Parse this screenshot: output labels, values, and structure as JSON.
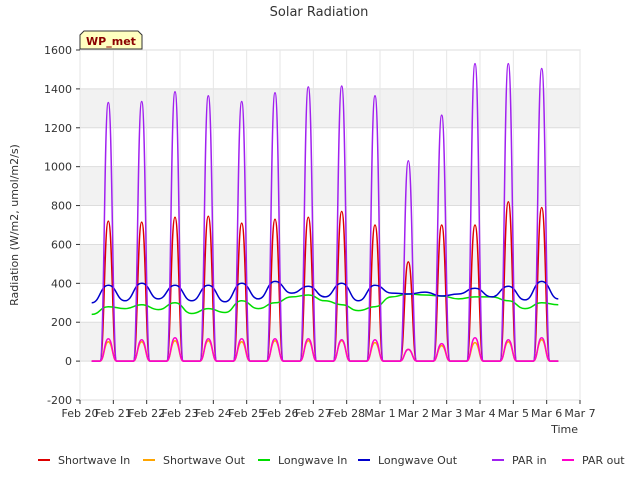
{
  "chart_data": {
    "type": "line",
    "title": "Solar Radiation",
    "xlabel": "Time",
    "ylabel": "Radiation (W/m2, umol/m2/s)",
    "badge": "WP_met",
    "x_ticks": [
      "Feb 20",
      "Feb 21",
      "Feb 22",
      "Feb 23",
      "Feb 24",
      "Feb 25",
      "Feb 26",
      "Feb 27",
      "Feb 28",
      "Mar 1",
      "Mar 2",
      "Mar 3",
      "Mar 4",
      "Mar 5",
      "Mar 6",
      "Mar 7"
    ],
    "y_ticks": [
      -200,
      0,
      200,
      400,
      600,
      800,
      1000,
      1200,
      1400,
      1600
    ],
    "xlim": [
      0,
      15
    ],
    "ylim": [
      -200,
      1600
    ],
    "grid": true,
    "legend_position": "bottom",
    "day_centers": [
      0.85,
      1.85,
      2.85,
      3.85,
      4.85,
      5.85,
      6.85,
      7.85,
      8.85,
      9.85,
      10.85,
      11.85,
      12.85,
      13.85
    ],
    "series": [
      {
        "name": "Shortwave In",
        "color": "#dd0000",
        "x": [
          0.35,
          0.6,
          0.85,
          1.1,
          1.35,
          1.6,
          1.85,
          2.1,
          2.35,
          2.6,
          2.85,
          3.1,
          3.35,
          3.6,
          3.85,
          4.1,
          4.35,
          4.6,
          4.85,
          5.1,
          5.35,
          5.6,
          5.85,
          6.1,
          6.35,
          6.6,
          6.85,
          7.1,
          7.35,
          7.6,
          7.85,
          8.1,
          8.35,
          8.6,
          8.85,
          9.1,
          9.35,
          9.6,
          9.85,
          10.1,
          10.35,
          10.6,
          10.85,
          11.1,
          11.35,
          11.6,
          11.85,
          12.1,
          12.35,
          12.6,
          12.85,
          13.1,
          13.35,
          13.6,
          13.85,
          14.1,
          14.35
        ],
        "y": [
          0,
          0,
          720,
          0,
          0,
          0,
          715,
          0,
          0,
          0,
          740,
          0,
          0,
          0,
          745,
          0,
          0,
          0,
          710,
          0,
          0,
          0,
          730,
          0,
          0,
          0,
          740,
          0,
          0,
          0,
          770,
          0,
          0,
          0,
          700,
          0,
          0,
          0,
          510,
          0,
          0,
          0,
          700,
          0,
          0,
          0,
          700,
          0,
          0,
          0,
          820,
          0,
          0,
          0,
          790,
          0,
          0
        ]
      },
      {
        "name": "Shortwave Out",
        "color": "#ffa500",
        "x": [
          0.35,
          0.6,
          0.85,
          1.1,
          1.35,
          1.6,
          1.85,
          2.1,
          2.35,
          2.6,
          2.85,
          3.1,
          3.35,
          3.6,
          3.85,
          4.1,
          4.35,
          4.6,
          4.85,
          5.1,
          5.35,
          5.6,
          5.85,
          6.1,
          6.35,
          6.6,
          6.85,
          7.1,
          7.35,
          7.6,
          7.85,
          8.1,
          8.35,
          8.6,
          8.85,
          9.1,
          9.35,
          9.6,
          9.85,
          10.1,
          10.35,
          10.6,
          10.85,
          11.1,
          11.35,
          11.6,
          11.85,
          12.1,
          12.35,
          12.6,
          12.85,
          13.1,
          13.35,
          13.6,
          13.85,
          14.1,
          14.35
        ],
        "y": [
          0,
          0,
          100,
          0,
          0,
          0,
          100,
          0,
          0,
          0,
          105,
          0,
          0,
          0,
          105,
          0,
          0,
          0,
          100,
          0,
          0,
          0,
          105,
          0,
          0,
          0,
          105,
          0,
          0,
          0,
          105,
          0,
          0,
          0,
          95,
          0,
          0,
          0,
          60,
          0,
          0,
          0,
          80,
          0,
          0,
          0,
          95,
          0,
          0,
          0,
          100,
          0,
          0,
          0,
          110,
          0,
          0
        ]
      },
      {
        "name": "Longwave In",
        "color": "#00dd00",
        "x": [
          0.35,
          0.85,
          1.35,
          1.85,
          2.35,
          2.85,
          3.35,
          3.85,
          4.35,
          4.85,
          5.35,
          5.85,
          6.35,
          6.85,
          7.35,
          7.85,
          8.35,
          8.85,
          9.35,
          9.85,
          10.35,
          10.85,
          11.35,
          11.85,
          12.35,
          12.85,
          13.35,
          13.85,
          14.35
        ],
        "y": [
          240,
          280,
          270,
          290,
          265,
          300,
          245,
          270,
          250,
          310,
          270,
          300,
          330,
          340,
          310,
          290,
          260,
          280,
          330,
          345,
          340,
          335,
          320,
          330,
          330,
          310,
          270,
          300,
          290
        ]
      },
      {
        "name": "Longwave Out",
        "color": "#0000cc",
        "x": [
          0.35,
          0.85,
          1.35,
          1.85,
          2.35,
          2.85,
          3.35,
          3.85,
          4.35,
          4.85,
          5.35,
          5.85,
          6.35,
          6.85,
          7.35,
          7.85,
          8.35,
          8.85,
          9.35,
          9.85,
          10.35,
          10.85,
          11.35,
          11.85,
          12.35,
          12.85,
          13.35,
          13.85,
          14.35
        ],
        "y": [
          300,
          390,
          310,
          400,
          320,
          390,
          310,
          390,
          305,
          400,
          320,
          410,
          350,
          385,
          330,
          400,
          310,
          390,
          350,
          345,
          355,
          335,
          345,
          375,
          330,
          385,
          315,
          410,
          320
        ]
      },
      {
        "name": "PAR in",
        "color": "#a020f0",
        "x": [
          0.35,
          0.6,
          0.85,
          1.1,
          1.35,
          1.6,
          1.85,
          2.1,
          2.35,
          2.6,
          2.85,
          3.1,
          3.35,
          3.6,
          3.85,
          4.1,
          4.35,
          4.6,
          4.85,
          5.1,
          5.35,
          5.6,
          5.85,
          6.1,
          6.35,
          6.6,
          6.85,
          7.1,
          7.35,
          7.6,
          7.85,
          8.1,
          8.35,
          8.6,
          8.85,
          9.1,
          9.35,
          9.6,
          9.85,
          10.1,
          10.35,
          10.6,
          10.85,
          11.1,
          11.35,
          11.6,
          11.85,
          12.1,
          12.35,
          12.6,
          12.85,
          13.1,
          13.35,
          13.6,
          13.85,
          14.1,
          14.35
        ],
        "y": [
          0,
          0,
          1330,
          0,
          0,
          0,
          1335,
          0,
          0,
          0,
          1385,
          0,
          0,
          0,
          1365,
          0,
          0,
          0,
          1335,
          0,
          0,
          0,
          1380,
          0,
          0,
          0,
          1410,
          0,
          0,
          0,
          1415,
          0,
          0,
          0,
          1365,
          0,
          0,
          0,
          1030,
          0,
          0,
          0,
          1265,
          0,
          0,
          0,
          1530,
          0,
          0,
          0,
          1530,
          0,
          0,
          0,
          1505,
          0,
          0
        ]
      },
      {
        "name": "PAR out",
        "color": "#ff00cc",
        "x": [
          0.35,
          0.6,
          0.85,
          1.1,
          1.35,
          1.6,
          1.85,
          2.1,
          2.35,
          2.6,
          2.85,
          3.1,
          3.35,
          3.6,
          3.85,
          4.1,
          4.35,
          4.6,
          4.85,
          5.1,
          5.35,
          5.6,
          5.85,
          6.1,
          6.35,
          6.6,
          6.85,
          7.1,
          7.35,
          7.6,
          7.85,
          8.1,
          8.35,
          8.6,
          8.85,
          9.1,
          9.35,
          9.6,
          9.85,
          10.1,
          10.35,
          10.6,
          10.85,
          11.1,
          11.35,
          11.6,
          11.85,
          12.1,
          12.35,
          12.6,
          12.85,
          13.1,
          13.35,
          13.6,
          13.85,
          14.1,
          14.35
        ],
        "y": [
          0,
          0,
          115,
          0,
          0,
          0,
          110,
          0,
          0,
          0,
          120,
          0,
          0,
          0,
          115,
          0,
          0,
          0,
          115,
          0,
          0,
          0,
          115,
          0,
          0,
          0,
          115,
          0,
          0,
          0,
          110,
          0,
          0,
          0,
          110,
          0,
          0,
          0,
          60,
          0,
          0,
          0,
          90,
          0,
          0,
          0,
          120,
          0,
          0,
          0,
          110,
          0,
          0,
          0,
          120,
          0,
          0
        ]
      }
    ]
  }
}
